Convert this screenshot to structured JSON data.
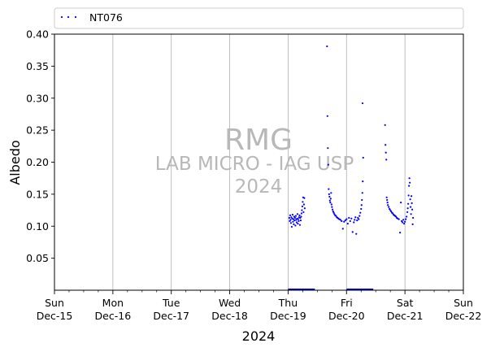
{
  "chart_data": {
    "type": "scatter",
    "ylabel": "Albedo",
    "xlabel": "2024",
    "ylim": [
      0.0,
      0.4
    ],
    "yticks": [
      "0.05",
      "0.10",
      "0.15",
      "0.20",
      "0.25",
      "0.30",
      "0.35",
      "0.40"
    ],
    "x_range": [
      "2024-12-15",
      "2024-12-22"
    ],
    "xticks": [
      {
        "day": "Sun",
        "date": "Dec-15"
      },
      {
        "day": "Mon",
        "date": "Dec-16"
      },
      {
        "day": "Tue",
        "date": "Dec-17"
      },
      {
        "day": "Wed",
        "date": "Dec-18"
      },
      {
        "day": "Thu",
        "date": "Dec-19"
      },
      {
        "day": "Fri",
        "date": "Dec-20"
      },
      {
        "day": "Sat",
        "date": "Dec-21"
      },
      {
        "day": "Sun",
        "date": "Dec-22"
      }
    ],
    "grid": "vertical",
    "legend_position": "top",
    "watermark": [
      "RMG",
      "LAB MICRO - IAG USP",
      "2024"
    ],
    "series": [
      {
        "name": "NT076",
        "color": "#0000ff",
        "points": [
          [
            "2024-12-19 00:30",
            0.113
          ],
          [
            "2024-12-19 00:40",
            0.108
          ],
          [
            "2024-12-19 00:50",
            0.117
          ],
          [
            "2024-12-19 01:00",
            0.11
          ],
          [
            "2024-12-19 01:10",
            0.105
          ],
          [
            "2024-12-19 01:20",
            0.114
          ],
          [
            "2024-12-19 01:30",
            0.099
          ],
          [
            "2024-12-19 01:40",
            0.112
          ],
          [
            "2024-12-19 01:50",
            0.118
          ],
          [
            "2024-12-19 02:00",
            0.107
          ],
          [
            "2024-12-19 02:10",
            0.111
          ],
          [
            "2024-12-19 02:20",
            0.103
          ],
          [
            "2024-12-19 02:30",
            0.115
          ],
          [
            "2024-12-19 02:40",
            0.109
          ],
          [
            "2024-12-19 02:50",
            0.113
          ],
          [
            "2024-12-19 03:00",
            0.101
          ],
          [
            "2024-12-19 03:10",
            0.116
          ],
          [
            "2024-12-19 03:20",
            0.11
          ],
          [
            "2024-12-19 03:30",
            0.106
          ],
          [
            "2024-12-19 03:40",
            0.112
          ],
          [
            "2024-12-19 03:50",
            0.119
          ],
          [
            "2024-12-19 04:00",
            0.104
          ],
          [
            "2024-12-19 04:10",
            0.111
          ],
          [
            "2024-12-19 04:20",
            0.108
          ],
          [
            "2024-12-19 04:30",
            0.114
          ],
          [
            "2024-12-19 04:40",
            0.117
          ],
          [
            "2024-12-19 04:50",
            0.102
          ],
          [
            "2024-12-19 05:00",
            0.113
          ],
          [
            "2024-12-19 05:10",
            0.109
          ],
          [
            "2024-12-19 05:20",
            0.115
          ],
          [
            "2024-12-19 05:30",
            0.12
          ],
          [
            "2024-12-19 05:40",
            0.125
          ],
          [
            "2024-12-19 05:50",
            0.131
          ],
          [
            "2024-12-19 06:00",
            0.138
          ],
          [
            "2024-12-19 06:10",
            0.145
          ],
          [
            "2024-12-19 06:20",
            0.122
          ],
          [
            "2024-12-19 06:30",
            0.134
          ],
          [
            "2024-12-19 06:40",
            0.144
          ],
          [
            "2024-12-19 06:50",
            0.128
          ],
          [
            "2024-12-19 16:00",
            0.381
          ],
          [
            "2024-12-19 16:10",
            0.272
          ],
          [
            "2024-12-19 16:20",
            0.222
          ],
          [
            "2024-12-19 16:30",
            0.196
          ],
          [
            "2024-12-19 16:40",
            0.158
          ],
          [
            "2024-12-19 16:50",
            0.15
          ],
          [
            "2024-12-19 17:00",
            0.146
          ],
          [
            "2024-12-19 17:10",
            0.14
          ],
          [
            "2024-12-19 17:20",
            0.137
          ],
          [
            "2024-12-19 17:30",
            0.143
          ],
          [
            "2024-12-19 17:40",
            0.152
          ],
          [
            "2024-12-19 17:50",
            0.134
          ],
          [
            "2024-12-19 18:00",
            0.13
          ],
          [
            "2024-12-19 18:15",
            0.126
          ],
          [
            "2024-12-19 18:30",
            0.123
          ],
          [
            "2024-12-19 18:45",
            0.121
          ],
          [
            "2024-12-19 19:00",
            0.119
          ],
          [
            "2024-12-19 19:20",
            0.117
          ],
          [
            "2024-12-19 19:40",
            0.116
          ],
          [
            "2024-12-19 20:00",
            0.114
          ],
          [
            "2024-12-19 20:20",
            0.113
          ],
          [
            "2024-12-19 20:40",
            0.112
          ],
          [
            "2024-12-19 21:00",
            0.111
          ],
          [
            "2024-12-19 21:30",
            0.11
          ],
          [
            "2024-12-19 22:00",
            0.108
          ],
          [
            "2024-12-19 22:30",
            0.096
          ],
          [
            "2024-12-19 23:00",
            0.107
          ],
          [
            "2024-12-19 23:30",
            0.109
          ],
          [
            "2024-12-20 00:00",
            0.111
          ],
          [
            "2024-12-20 00:30",
            0.104
          ],
          [
            "2024-12-20 01:00",
            0.113
          ],
          [
            "2024-12-20 01:30",
            0.108
          ],
          [
            "2024-12-20 02:00",
            0.112
          ],
          [
            "2024-12-20 02:30",
            0.091
          ],
          [
            "2024-12-20 03:00",
            0.106
          ],
          [
            "2024-12-20 03:20",
            0.11
          ],
          [
            "2024-12-20 03:40",
            0.114
          ],
          [
            "2024-12-20 04:00",
            0.088
          ],
          [
            "2024-12-20 04:20",
            0.109
          ],
          [
            "2024-12-20 04:40",
            0.113
          ],
          [
            "2024-12-20 05:00",
            0.111
          ],
          [
            "2024-12-20 05:20",
            0.116
          ],
          [
            "2024-12-20 05:40",
            0.121
          ],
          [
            "2024-12-20 06:00",
            0.127
          ],
          [
            "2024-12-20 06:10",
            0.133
          ],
          [
            "2024-12-20 06:20",
            0.141
          ],
          [
            "2024-12-20 06:30",
            0.152
          ],
          [
            "2024-12-20 06:40",
            0.17
          ],
          [
            "2024-12-20 06:50",
            0.207
          ],
          [
            "2024-12-20 06:35",
            0.292
          ],
          [
            "2024-12-20 15:50",
            0.258
          ],
          [
            "2024-12-20 16:00",
            0.227
          ],
          [
            "2024-12-20 16:10",
            0.215
          ],
          [
            "2024-12-20 16:20",
            0.204
          ],
          [
            "2024-12-20 16:30",
            0.145
          ],
          [
            "2024-12-20 16:40",
            0.141
          ],
          [
            "2024-12-20 16:50",
            0.137
          ],
          [
            "2024-12-20 17:00",
            0.133
          ],
          [
            "2024-12-20 17:20",
            0.13
          ],
          [
            "2024-12-20 17:40",
            0.127
          ],
          [
            "2024-12-20 18:00",
            0.125
          ],
          [
            "2024-12-20 18:20",
            0.123
          ],
          [
            "2024-12-20 18:40",
            0.121
          ],
          [
            "2024-12-20 19:00",
            0.12
          ],
          [
            "2024-12-20 19:20",
            0.118
          ],
          [
            "2024-12-20 19:40",
            0.117
          ],
          [
            "2024-12-20 20:00",
            0.116
          ],
          [
            "2024-12-20 20:20",
            0.115
          ],
          [
            "2024-12-20 20:40",
            0.113
          ],
          [
            "2024-12-20 21:00",
            0.112
          ],
          [
            "2024-12-20 21:30",
            0.111
          ],
          [
            "2024-12-20 22:00",
            0.09
          ],
          [
            "2024-12-20 22:20",
            0.137
          ],
          [
            "2024-12-20 22:40",
            0.108
          ],
          [
            "2024-12-20 23:00",
            0.106
          ],
          [
            "2024-12-20 23:20",
            0.11
          ],
          [
            "2024-12-20 23:40",
            0.104
          ],
          [
            "2024-12-21 00:00",
            0.107
          ],
          [
            "2024-12-21 00:20",
            0.111
          ],
          [
            "2024-12-21 00:40",
            0.115
          ],
          [
            "2024-12-21 01:00",
            0.122
          ],
          [
            "2024-12-21 01:10",
            0.128
          ],
          [
            "2024-12-21 01:20",
            0.135
          ],
          [
            "2024-12-21 01:30",
            0.148
          ],
          [
            "2024-12-21 01:40",
            0.163
          ],
          [
            "2024-12-21 01:50",
            0.175
          ],
          [
            "2024-12-21 02:00",
            0.168
          ],
          [
            "2024-12-21 02:10",
            0.142
          ],
          [
            "2024-12-21 02:20",
            0.13
          ],
          [
            "2024-12-21 02:30",
            0.119
          ],
          [
            "2024-12-21 02:40",
            0.147
          ],
          [
            "2024-12-21 02:50",
            0.136
          ],
          [
            "2024-12-21 03:00",
            0.126
          ],
          [
            "2024-12-21 03:10",
            0.103
          ],
          [
            "2024-12-21 03:20",
            0.113
          ]
        ]
      },
      {
        "color": "#0000ff",
        "style": "line",
        "segments": [
          [
            [
              "2024-12-19 00:00",
              0.0
            ],
            [
              "2024-12-19 11:00",
              0.0
            ]
          ],
          [
            [
              "2024-12-20 00:00",
              0.0
            ],
            [
              "2024-12-20 11:00",
              0.0
            ]
          ]
        ]
      }
    ]
  }
}
